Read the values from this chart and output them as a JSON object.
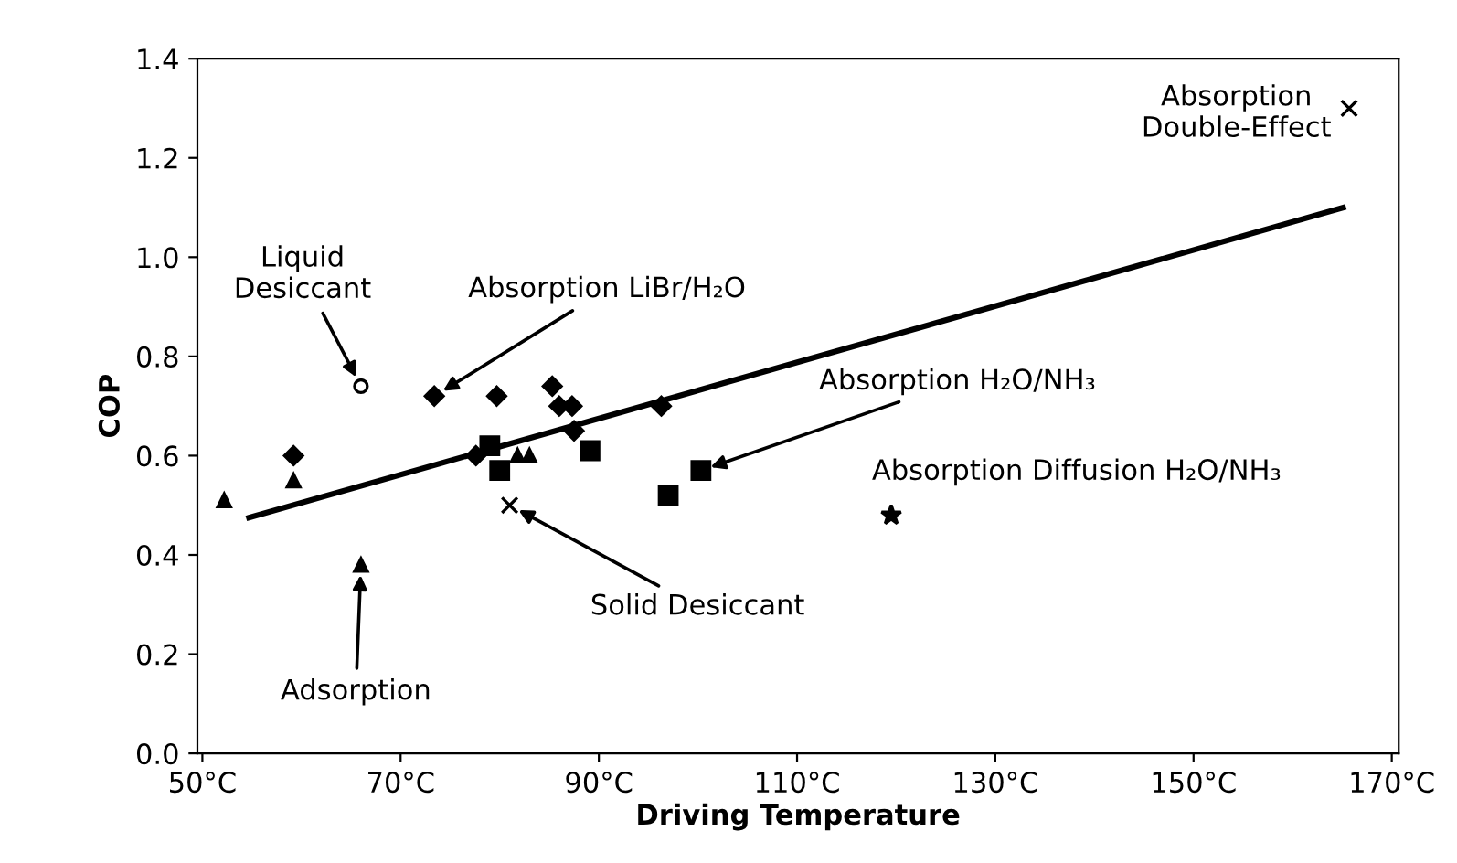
{
  "chart_data": {
    "type": "scatter",
    "xlabel": "Driving Temperature",
    "ylabel": "COP",
    "xlim": [
      49.5,
      170.7
    ],
    "ylim": [
      0,
      1.4
    ],
    "xticks": [
      {
        "value": 50,
        "label": "50°C"
      },
      {
        "value": 70,
        "label": "70°C"
      },
      {
        "value": 90,
        "label": "90°C"
      },
      {
        "value": 110,
        "label": "110°C"
      },
      {
        "value": 130,
        "label": "130°C"
      },
      {
        "value": 150,
        "label": "150°C"
      },
      {
        "value": 170,
        "label": "170°C"
      }
    ],
    "yticks": [
      {
        "value": 0,
        "label": "0.0"
      },
      {
        "value": 0.2,
        "label": "0.2"
      },
      {
        "value": 0.4,
        "label": "0.4"
      },
      {
        "value": 0.6,
        "label": "0.6"
      },
      {
        "value": 0.8,
        "label": "0.8"
      },
      {
        "value": 1.0,
        "label": "1.0"
      },
      {
        "value": 1.2,
        "label": "1.2"
      },
      {
        "value": 1.4,
        "label": "1.4"
      }
    ],
    "grid": false,
    "legend": false,
    "series": [
      {
        "type": "line",
        "color": "#000000",
        "line_style": "solid",
        "marker": "none",
        "x": [
          54.7,
          165.1
        ],
        "values": [
          0.475,
          1.1
        ]
      },
      {
        "color": "#000000",
        "marker": "triangle",
        "x": [
          52.2,
          59.2,
          66,
          81.8,
          83
        ],
        "values": [
          0.51,
          0.55,
          0.38,
          0.6,
          0.6
        ]
      },
      {
        "color": "#000000",
        "marker": "diamond",
        "x": [
          59.2,
          73.4,
          79.7,
          85.3,
          86,
          87.3,
          87.5,
          96.3,
          77.6
        ],
        "values": [
          0.6,
          0.72,
          0.72,
          0.74,
          0.7,
          0.7,
          0.65,
          0.7,
          0.6
        ]
      },
      {
        "color": "#000000",
        "marker": "square",
        "x": [
          79,
          80,
          89.1,
          97,
          100.3
        ],
        "values": [
          0.62,
          0.57,
          0.61,
          0.52,
          0.57
        ]
      },
      {
        "color": "#000000",
        "marker": "circle",
        "x": [
          66
        ],
        "values": [
          0.74
        ]
      },
      {
        "color": "#000000",
        "marker": "cross",
        "x": [
          81
        ],
        "values": [
          0.5
        ]
      },
      {
        "color": "#000000",
        "marker": "star",
        "x": [
          119.5
        ],
        "values": [
          0.48
        ]
      },
      {
        "color": "#000000",
        "marker": "cross",
        "x": [
          165.7
        ],
        "values": [
          1.3
        ]
      }
    ],
    "annotations": [
      {
        "text": "Liquid\nDesiccant",
        "x": 66,
        "y": 0.74
      },
      {
        "text": "Absorption LiBr/H₂O",
        "x": 73.4,
        "y": 0.72
      },
      {
        "text": "Absorption H₂O/NH₃",
        "x": 100.3,
        "y": 0.57
      },
      {
        "text": "Absorption Diffusion H₂O/NH₃",
        "x": 119.5,
        "y": 0.48
      },
      {
        "text": "Solid Desiccant",
        "x": 81,
        "y": 0.5
      },
      {
        "text": "Adsorption",
        "x": 66,
        "y": 0.38
      },
      {
        "text": "Absorption\nDouble-Effect",
        "x": 165.7,
        "y": 1.3
      }
    ]
  }
}
